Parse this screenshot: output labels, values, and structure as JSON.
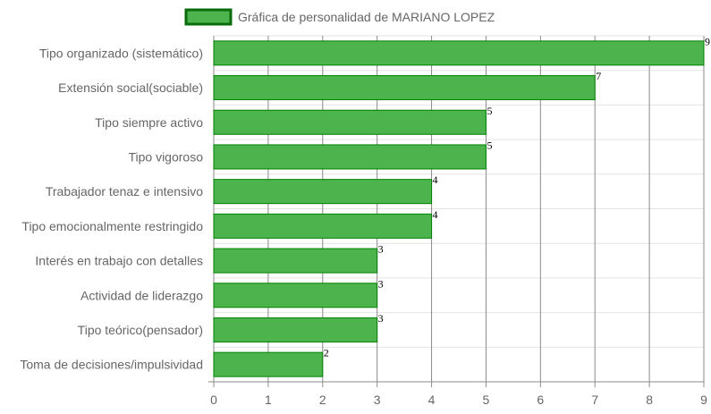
{
  "chart_data": {
    "type": "bar",
    "orientation": "horizontal",
    "categories": [
      "Tipo organizado (sistemático)",
      "Extensión social(sociable)",
      "Tipo siempre activo",
      "Tipo vigoroso",
      "Trabajador tenaz e intensivo",
      "Tipo emocionalmente restringido",
      "Interés en trabajo con detalles",
      "Actividad de liderazgo",
      "Tipo teórico(pensador)",
      "Toma de decisiones/impulsividad"
    ],
    "series": [
      {
        "name": "Gráfica de personalidad de MARIANO LOPEZ",
        "values": [
          9,
          7,
          5,
          5,
          4,
          4,
          3,
          3,
          3,
          2
        ]
      }
    ],
    "xlim": [
      0,
      9
    ],
    "xticks": [
      "0",
      "1",
      "2",
      "3",
      "4",
      "5",
      "6",
      "7",
      "8",
      "9"
    ],
    "grid": true,
    "legend_position": "top",
    "data_labels": true,
    "colors": {
      "bar_fill": "#4db34d",
      "bar_stroke": "#008000",
      "legend_fill": "#4db34d",
      "legend_stroke": "#0a6b0a",
      "vertical_grid": "#8a8a8a",
      "horizontal_grid": "#e4e4e4",
      "text": "#666666"
    }
  }
}
